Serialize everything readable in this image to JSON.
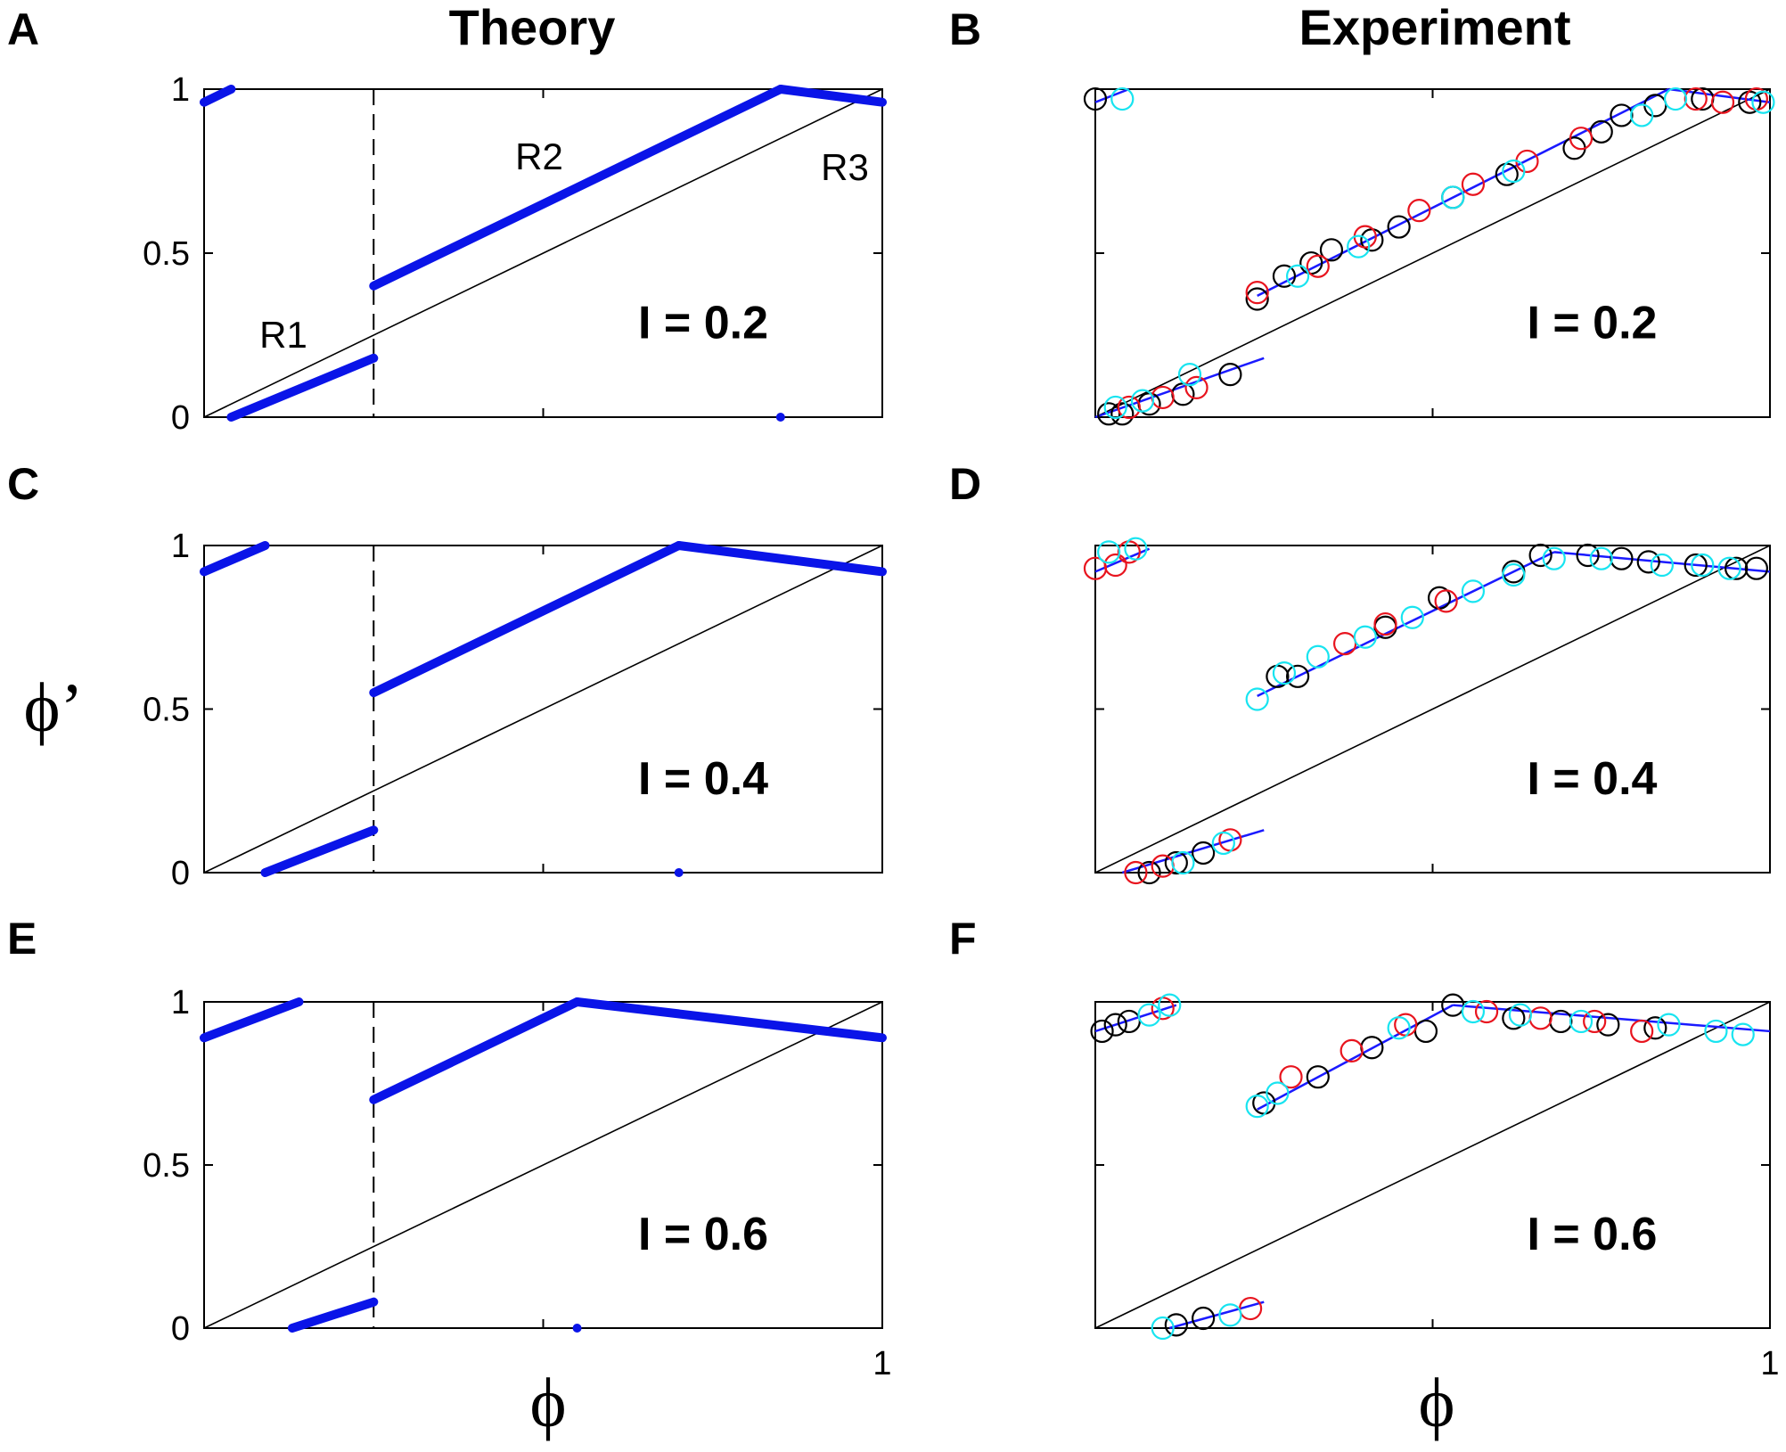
{
  "figure": {
    "col_titles": [
      "Theory",
      "Experiment"
    ],
    "xlabel": "ϕ",
    "ylabel": "ϕ’"
  },
  "colors": {
    "theory_line": "#0a14e8",
    "fit_line": "#1a1aff",
    "diagonal": "#000000",
    "trial_black": "#000000",
    "trial_red": "#e8141e",
    "trial_cyan": "#18e4f0"
  },
  "chart_data": [
    {
      "panel": "A",
      "kind": "theory",
      "type": "line",
      "annotation": "I = 0.2",
      "xlim": [
        0,
        1
      ],
      "ylim": [
        0,
        1
      ],
      "yticks": [
        "0",
        "0.5",
        "1"
      ],
      "xticks": [],
      "threshold": 0.25,
      "regions": [
        "R1",
        "R2",
        "R3"
      ],
      "series": [
        {
          "name": "R1",
          "points": [
            [
              0.04,
              0.0
            ],
            [
              0.25,
              0.18
            ]
          ]
        },
        {
          "name": "R2",
          "points": [
            [
              0.25,
              0.4
            ],
            [
              0.85,
              1.0
            ]
          ]
        },
        {
          "name": "R3",
          "points": [
            [
              0.85,
              1.0
            ],
            [
              1.0,
              0.96
            ]
          ]
        },
        {
          "name": "R3-wrap",
          "points": [
            [
              0.0,
              0.96
            ],
            [
              0.04,
              1.0
            ]
          ]
        }
      ],
      "dot": [
        0.85,
        0.0
      ]
    },
    {
      "panel": "B",
      "kind": "experiment",
      "type": "scatter",
      "annotation": "I = 0.2",
      "xlim": [
        0,
        1
      ],
      "ylim": [
        0,
        1
      ],
      "yticks": [],
      "xticks": [],
      "fits": [
        [
          [
            0.0,
            0.0
          ],
          [
            0.25,
            0.18
          ]
        ],
        [
          [
            0.24,
            0.37
          ],
          [
            0.85,
            1.0
          ]
        ],
        [
          [
            0.85,
            1.0
          ],
          [
            1.0,
            0.96
          ]
        ],
        [
          [
            0.0,
            0.96
          ],
          [
            0.05,
            1.0
          ]
        ]
      ],
      "trials": [
        {
          "name": "black",
          "points": [
            [
              0.0,
              0.97
            ],
            [
              0.02,
              0.01
            ],
            [
              0.04,
              0.01
            ],
            [
              0.08,
              0.04
            ],
            [
              0.13,
              0.07
            ],
            [
              0.2,
              0.13
            ],
            [
              0.24,
              0.36
            ],
            [
              0.28,
              0.43
            ],
            [
              0.32,
              0.47
            ],
            [
              0.35,
              0.51
            ],
            [
              0.41,
              0.54
            ],
            [
              0.45,
              0.58
            ],
            [
              0.53,
              0.67
            ],
            [
              0.61,
              0.74
            ],
            [
              0.71,
              0.82
            ],
            [
              0.75,
              0.87
            ],
            [
              0.78,
              0.92
            ],
            [
              0.83,
              0.95
            ],
            [
              0.9,
              0.97
            ],
            [
              0.97,
              0.96
            ]
          ]
        },
        {
          "name": "red",
          "points": [
            [
              0.05,
              0.03
            ],
            [
              0.1,
              0.06
            ],
            [
              0.15,
              0.09
            ],
            [
              0.24,
              0.38
            ],
            [
              0.33,
              0.46
            ],
            [
              0.4,
              0.55
            ],
            [
              0.48,
              0.63
            ],
            [
              0.56,
              0.71
            ],
            [
              0.64,
              0.78
            ],
            [
              0.72,
              0.85
            ],
            [
              0.89,
              0.97
            ],
            [
              0.93,
              0.96
            ],
            [
              0.98,
              0.97
            ]
          ]
        },
        {
          "name": "cyan",
          "points": [
            [
              0.04,
              0.97
            ],
            [
              0.03,
              0.03
            ],
            [
              0.07,
              0.05
            ],
            [
              0.14,
              0.13
            ],
            [
              0.3,
              0.43
            ],
            [
              0.39,
              0.52
            ],
            [
              0.53,
              0.67
            ],
            [
              0.62,
              0.75
            ],
            [
              0.81,
              0.92
            ],
            [
              0.86,
              0.97
            ],
            [
              0.99,
              0.96
            ]
          ]
        }
      ]
    },
    {
      "panel": "C",
      "kind": "theory",
      "type": "line",
      "annotation": "I = 0.4",
      "xlim": [
        0,
        1
      ],
      "ylim": [
        0,
        1
      ],
      "yticks": [
        "0",
        "0.5",
        "1"
      ],
      "xticks": [],
      "threshold": 0.25,
      "series": [
        {
          "name": "R1",
          "points": [
            [
              0.09,
              0.0
            ],
            [
              0.25,
              0.13
            ]
          ]
        },
        {
          "name": "R2",
          "points": [
            [
              0.25,
              0.55
            ],
            [
              0.7,
              1.0
            ]
          ]
        },
        {
          "name": "R3",
          "points": [
            [
              0.7,
              1.0
            ],
            [
              1.0,
              0.92
            ]
          ]
        },
        {
          "name": "R3-wrap",
          "points": [
            [
              0.0,
              0.92
            ],
            [
              0.09,
              1.0
            ]
          ]
        }
      ],
      "dot": [
        0.7,
        0.0
      ]
    },
    {
      "panel": "D",
      "kind": "experiment",
      "type": "scatter",
      "annotation": "I = 0.4",
      "xlim": [
        0,
        1
      ],
      "ylim": [
        0,
        1
      ],
      "yticks": [],
      "xticks": [],
      "fits": [
        [
          [
            0.04,
            0.0
          ],
          [
            0.25,
            0.13
          ]
        ],
        [
          [
            0.24,
            0.54
          ],
          [
            0.68,
            0.98
          ]
        ],
        [
          [
            0.68,
            0.98
          ],
          [
            1.0,
            0.92
          ]
        ],
        [
          [
            0.0,
            0.92
          ],
          [
            0.08,
            0.99
          ]
        ]
      ],
      "trials": [
        {
          "name": "black",
          "points": [
            [
              0.08,
              0.0
            ],
            [
              0.12,
              0.03
            ],
            [
              0.16,
              0.06
            ],
            [
              0.27,
              0.6
            ],
            [
              0.3,
              0.6
            ],
            [
              0.43,
              0.75
            ],
            [
              0.51,
              0.84
            ],
            [
              0.62,
              0.92
            ],
            [
              0.66,
              0.97
            ],
            [
              0.73,
              0.97
            ],
            [
              0.78,
              0.96
            ],
            [
              0.82,
              0.95
            ],
            [
              0.89,
              0.94
            ],
            [
              0.95,
              0.93
            ],
            [
              0.98,
              0.93
            ]
          ]
        },
        {
          "name": "red",
          "points": [
            [
              0.0,
              0.93
            ],
            [
              0.03,
              0.94
            ],
            [
              0.05,
              0.98
            ],
            [
              0.06,
              0.0
            ],
            [
              0.1,
              0.02
            ],
            [
              0.2,
              0.1
            ],
            [
              0.37,
              0.7
            ],
            [
              0.43,
              0.76
            ],
            [
              0.52,
              0.83
            ]
          ]
        },
        {
          "name": "cyan",
          "points": [
            [
              0.02,
              0.98
            ],
            [
              0.06,
              0.99
            ],
            [
              0.13,
              0.03
            ],
            [
              0.19,
              0.09
            ],
            [
              0.24,
              0.53
            ],
            [
              0.28,
              0.61
            ],
            [
              0.33,
              0.66
            ],
            [
              0.4,
              0.72
            ],
            [
              0.47,
              0.78
            ],
            [
              0.56,
              0.86
            ],
            [
              0.62,
              0.91
            ],
            [
              0.68,
              0.96
            ],
            [
              0.75,
              0.96
            ],
            [
              0.84,
              0.94
            ],
            [
              0.9,
              0.94
            ],
            [
              0.94,
              0.93
            ]
          ]
        }
      ]
    },
    {
      "panel": "E",
      "kind": "theory",
      "type": "line",
      "annotation": "I = 0.6",
      "xlim": [
        0,
        1
      ],
      "ylim": [
        0,
        1
      ],
      "yticks": [
        "0",
        "0.5",
        "1"
      ],
      "xticks": [
        "1"
      ],
      "threshold": 0.25,
      "series": [
        {
          "name": "R1",
          "points": [
            [
              0.13,
              0.0
            ],
            [
              0.25,
              0.08
            ]
          ]
        },
        {
          "name": "R2",
          "points": [
            [
              0.25,
              0.7
            ],
            [
              0.55,
              1.0
            ]
          ]
        },
        {
          "name": "R3",
          "points": [
            [
              0.55,
              1.0
            ],
            [
              1.0,
              0.89
            ]
          ]
        },
        {
          "name": "R3-wrap",
          "points": [
            [
              0.0,
              0.89
            ],
            [
              0.14,
              1.0
            ]
          ]
        }
      ],
      "dot": [
        0.55,
        0.0
      ]
    },
    {
      "panel": "F",
      "kind": "experiment",
      "type": "scatter",
      "annotation": "I = 0.6",
      "xlim": [
        0,
        1
      ],
      "ylim": [
        0,
        1
      ],
      "yticks": [],
      "xticks": [
        "1"
      ],
      "fits": [
        [
          [
            0.11,
            0.0
          ],
          [
            0.25,
            0.08
          ]
        ],
        [
          [
            0.24,
            0.67
          ],
          [
            0.53,
            0.99
          ]
        ],
        [
          [
            0.53,
            0.99
          ],
          [
            1.0,
            0.91
          ]
        ],
        [
          [
            0.0,
            0.91
          ],
          [
            0.12,
            0.99
          ]
        ]
      ],
      "trials": [
        {
          "name": "black",
          "points": [
            [
              0.01,
              0.91
            ],
            [
              0.03,
              0.93
            ],
            [
              0.05,
              0.94
            ],
            [
              0.12,
              0.01
            ],
            [
              0.16,
              0.03
            ],
            [
              0.25,
              0.69
            ],
            [
              0.33,
              0.77
            ],
            [
              0.41,
              0.86
            ],
            [
              0.49,
              0.91
            ],
            [
              0.53,
              0.99
            ],
            [
              0.62,
              0.95
            ],
            [
              0.69,
              0.94
            ],
            [
              0.76,
              0.93
            ],
            [
              0.83,
              0.92
            ]
          ]
        },
        {
          "name": "red",
          "points": [
            [
              0.1,
              0.98
            ],
            [
              0.23,
              0.06
            ],
            [
              0.29,
              0.77
            ],
            [
              0.38,
              0.85
            ],
            [
              0.46,
              0.93
            ],
            [
              0.58,
              0.97
            ],
            [
              0.66,
              0.95
            ],
            [
              0.74,
              0.94
            ],
            [
              0.81,
              0.91
            ]
          ]
        },
        {
          "name": "cyan",
          "points": [
            [
              0.08,
              0.96
            ],
            [
              0.11,
              0.99
            ],
            [
              0.1,
              0.0
            ],
            [
              0.2,
              0.04
            ],
            [
              0.24,
              0.68
            ],
            [
              0.27,
              0.72
            ],
            [
              0.45,
              0.92
            ],
            [
              0.56,
              0.97
            ],
            [
              0.63,
              0.96
            ],
            [
              0.72,
              0.94
            ],
            [
              0.85,
              0.93
            ],
            [
              0.92,
              0.91
            ],
            [
              0.96,
              0.9
            ]
          ]
        }
      ]
    }
  ]
}
